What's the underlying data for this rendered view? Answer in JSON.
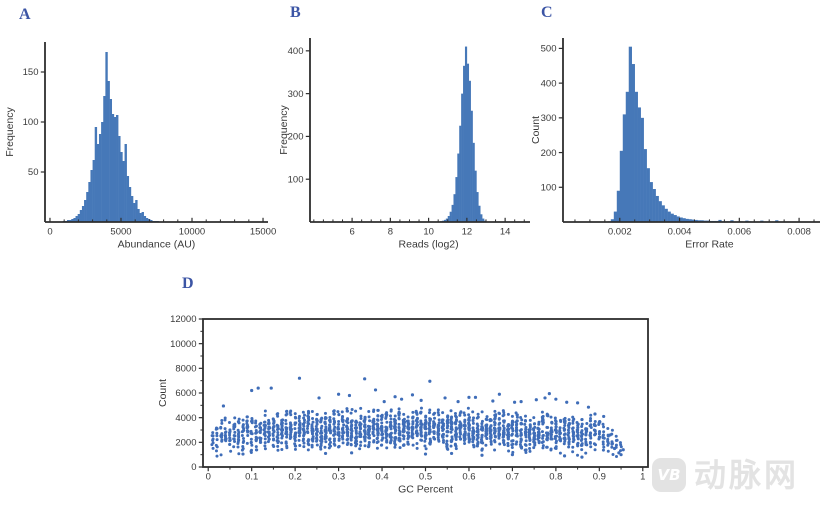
{
  "colors": {
    "bar": "#4678b8",
    "point": "#3f6db8",
    "axis": "#2e2e2e",
    "tick_text": "#3a3a3a",
    "panel_letter": "#3c55a5",
    "watermark": "#e3e3e3"
  },
  "watermark": {
    "logo_text": "VB",
    "brand_text": "动脉网"
  },
  "chart_data": [
    {
      "panel": "A",
      "type": "bar",
      "subtype": "histogram",
      "title": "",
      "xlabel": "Abundance (AU)",
      "ylabel": "Frequency",
      "xlim": [
        -350,
        15350
      ],
      "ylim": [
        0,
        180
      ],
      "xticks": {
        "values": [
          0,
          5000,
          10000,
          15000
        ],
        "labels": [
          "0",
          "5000",
          "10000",
          "15000"
        ]
      },
      "xminor_step": 1000,
      "yticks": {
        "values": [
          50,
          100,
          150
        ],
        "labels": [
          "50",
          "100",
          "150"
        ]
      },
      "bin_start": 900,
      "bin_width": 150,
      "frequencies": [
        1,
        1,
        2,
        2,
        3,
        4,
        6,
        8,
        12,
        16,
        22,
        30,
        40,
        52,
        62,
        95,
        78,
        88,
        100,
        126,
        170,
        141,
        123,
        108,
        105,
        107,
        86,
        70,
        61,
        78,
        46,
        35,
        26,
        19,
        22,
        13,
        9,
        10,
        6,
        4,
        3,
        2,
        1,
        1,
        1
      ],
      "grid": false,
      "legend": null
    },
    {
      "panel": "B",
      "type": "bar",
      "subtype": "histogram",
      "title": "",
      "xlabel": "Reads (log2)",
      "ylabel": "Frequency",
      "xlim": [
        3.8,
        15.3
      ],
      "ylim": [
        0,
        430
      ],
      "xticks": {
        "values": [
          6,
          8,
          10,
          12,
          14
        ],
        "labels": [
          "6",
          "8",
          "10",
          "12",
          "14"
        ]
      },
      "xminor_step": 0.5,
      "yticks": {
        "values": [
          100,
          200,
          300,
          400
        ],
        "labels": [
          "100",
          "200",
          "300",
          "400"
        ]
      },
      "bin_start": 10.4,
      "bin_width": 0.1,
      "frequencies": [
        1,
        1,
        2,
        3,
        5,
        8,
        14,
        24,
        40,
        65,
        105,
        160,
        225,
        300,
        365,
        410,
        370,
        330,
        260,
        185,
        120,
        70,
        38,
        18,
        8,
        3,
        1
      ],
      "grid": false,
      "legend": null
    },
    {
      "panel": "C",
      "type": "bar",
      "subtype": "histogram",
      "title": "",
      "xlabel": "Error Rate",
      "ylabel": "Count",
      "xlim": [
        0.0001,
        0.0087
      ],
      "ylim": [
        0,
        530
      ],
      "xticks": {
        "values": [
          0.002,
          0.004,
          0.006,
          0.008
        ],
        "labels": [
          "0.002",
          "0.004",
          "0.006",
          "0.008"
        ]
      },
      "xminor_step": 0.0005,
      "yticks": {
        "values": [
          100,
          200,
          300,
          400,
          500
        ],
        "labels": [
          "100",
          "200",
          "300",
          "400",
          "500"
        ]
      },
      "bin_start": 0.0016,
      "bin_width": 0.0001,
      "frequencies": [
        2,
        8,
        30,
        90,
        205,
        310,
        375,
        505,
        455,
        375,
        330,
        300,
        210,
        155,
        115,
        95,
        75,
        60,
        48,
        38,
        30,
        24,
        20,
        16,
        13,
        11,
        9,
        8,
        7,
        6,
        5,
        5,
        4,
        4,
        3,
        3,
        3,
        6,
        2,
        2,
        2,
        5,
        1,
        1,
        2,
        1,
        4,
        2,
        1,
        1,
        1,
        4,
        1,
        1,
        1,
        1,
        5,
        1,
        1,
        1
      ],
      "grid": false,
      "legend": null
    },
    {
      "panel": "D",
      "type": "scatter",
      "title": "",
      "xlabel": "GC Percent",
      "ylabel": "Count",
      "xlim": [
        -0.012,
        1.012
      ],
      "ylim": [
        0,
        12000
      ],
      "frame": true,
      "xticks": {
        "values": [
          0,
          0.1,
          0.2,
          0.3,
          0.4,
          0.5,
          0.6,
          0.7,
          0.8,
          0.9,
          1
        ],
        "labels": [
          "0",
          "0.1",
          "0.2",
          "0.3",
          "0.4",
          "0.5",
          "0.6",
          "0.7",
          "0.8",
          "0.9",
          "1"
        ]
      },
      "xminor_step": 0.05,
      "yticks": {
        "values": [
          0,
          2000,
          4000,
          6000,
          8000,
          10000,
          12000
        ],
        "labels": [
          "0",
          "2000",
          "4000",
          "6000",
          "8000",
          "10000",
          "12000"
        ]
      },
      "yminor_step": 1000,
      "band": {
        "x_start": 0.01,
        "x_end": 0.955,
        "x_step": 0.01,
        "seed": 42,
        "n_center": 24,
        "n_edge": 8,
        "y_center_base": 2450,
        "y_center_bump": 650,
        "y_spread": 1150,
        "y_min": 250,
        "y_max": 5150,
        "taper_from": 0.88,
        "low_tail_from": 0.9
      },
      "outliers": [
        [
          0.035,
          4950
        ],
        [
          0.1,
          6200
        ],
        [
          0.115,
          6400
        ],
        [
          0.145,
          6400
        ],
        [
          0.21,
          7200
        ],
        [
          0.255,
          5600
        ],
        [
          0.3,
          5900
        ],
        [
          0.325,
          5800
        ],
        [
          0.36,
          7150
        ],
        [
          0.385,
          6250
        ],
        [
          0.405,
          5300
        ],
        [
          0.43,
          5700
        ],
        [
          0.445,
          5500
        ],
        [
          0.47,
          5850
        ],
        [
          0.49,
          5400
        ],
        [
          0.51,
          6950
        ],
        [
          0.545,
          5600
        ],
        [
          0.575,
          5300
        ],
        [
          0.6,
          5650
        ],
        [
          0.615,
          5650
        ],
        [
          0.655,
          5350
        ],
        [
          0.67,
          5900
        ],
        [
          0.705,
          5250
        ],
        [
          0.72,
          5300
        ],
        [
          0.755,
          5450
        ],
        [
          0.775,
          5600
        ],
        [
          0.785,
          5950
        ],
        [
          0.8,
          5500
        ],
        [
          0.825,
          5250
        ],
        [
          0.85,
          5200
        ],
        [
          0.875,
          4850
        ],
        [
          0.89,
          4300
        ],
        [
          0.91,
          4100
        ],
        [
          0.925,
          2600
        ],
        [
          0.93,
          1900
        ],
        [
          0.935,
          1500
        ],
        [
          0.945,
          1150
        ],
        [
          0.95,
          1000
        ],
        [
          0.955,
          1400
        ],
        [
          0.08,
          1050
        ],
        [
          0.27,
          1100
        ],
        [
          0.33,
          1150
        ],
        [
          0.5,
          1050
        ],
        [
          0.56,
          1100
        ],
        [
          0.63,
          950
        ],
        [
          0.7,
          1000
        ],
        [
          0.82,
          900
        ],
        [
          0.86,
          800
        ]
      ],
      "grid": false,
      "legend": null
    }
  ]
}
